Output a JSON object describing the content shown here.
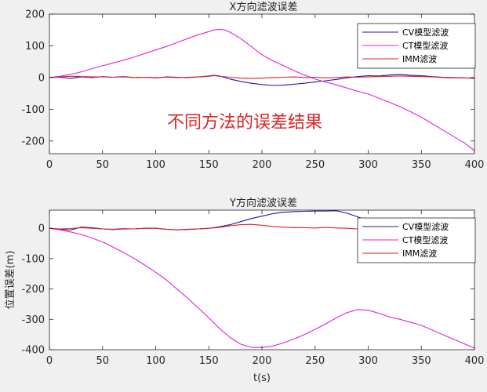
{
  "overlay_text": "不同方法的误差结果",
  "colors": {
    "figure_bg": "#f0f0f0",
    "axes_bg": "#ffffff",
    "axes_border": "#262626",
    "overlay": "#e02424"
  },
  "chart_data": [
    {
      "type": "line",
      "title": "X方向滤波误差",
      "xlabel": "",
      "ylabel": "",
      "xlim": [
        0,
        400
      ],
      "ylim": [
        -240,
        200
      ],
      "xticks": [
        0,
        50,
        100,
        150,
        200,
        250,
        300,
        350,
        400
      ],
      "yticks": [
        -200,
        -100,
        0,
        100,
        200
      ],
      "legend_position": "top-right",
      "series": [
        {
          "name": "CV模型滤波",
          "color": "#1a1a9e",
          "x": [
            0,
            10,
            20,
            30,
            40,
            50,
            60,
            70,
            80,
            90,
            100,
            110,
            120,
            130,
            140,
            150,
            155,
            160,
            170,
            180,
            190,
            200,
            210,
            220,
            230,
            240,
            250,
            260,
            270,
            280,
            290,
            300,
            310,
            320,
            330,
            340,
            350,
            360,
            370,
            380,
            390,
            400
          ],
          "y": [
            0,
            1,
            -3,
            2,
            0,
            3,
            1,
            3,
            0,
            1,
            -1,
            2,
            1,
            0,
            2,
            5,
            7,
            5,
            -5,
            -12,
            -18,
            -22,
            -25,
            -24,
            -21,
            -18,
            -14,
            -10,
            -6,
            -1,
            3,
            6,
            5,
            8,
            10,
            7,
            6,
            3,
            1,
            0,
            -1,
            -2
          ]
        },
        {
          "name": "CT模型滤波",
          "color": "#e020e0",
          "x": [
            0,
            10,
            20,
            30,
            40,
            50,
            60,
            70,
            80,
            90,
            100,
            110,
            120,
            130,
            140,
            150,
            155,
            160,
            165,
            170,
            180,
            190,
            200,
            210,
            220,
            230,
            240,
            250,
            260,
            270,
            280,
            290,
            300,
            310,
            320,
            330,
            340,
            350,
            360,
            370,
            380,
            390,
            400
          ],
          "y": [
            0,
            4,
            10,
            18,
            28,
            37,
            46,
            55,
            65,
            76,
            87,
            98,
            110,
            123,
            135,
            145,
            150,
            152,
            150,
            143,
            123,
            98,
            72,
            53,
            38,
            22,
            8,
            -5,
            -14,
            -23,
            -33,
            -43,
            -52,
            -65,
            -78,
            -92,
            -108,
            -125,
            -145,
            -165,
            -185,
            -205,
            -230
          ]
        },
        {
          "name": "IMM滤波",
          "color": "#dd2222",
          "x": [
            0,
            10,
            20,
            30,
            40,
            50,
            60,
            70,
            80,
            90,
            100,
            110,
            120,
            130,
            140,
            150,
            155,
            160,
            170,
            180,
            190,
            200,
            210,
            220,
            230,
            240,
            250,
            260,
            270,
            280,
            290,
            300,
            310,
            320,
            330,
            340,
            350,
            360,
            370,
            380,
            390,
            400
          ],
          "y": [
            0,
            2,
            4,
            3,
            2,
            2,
            1,
            2,
            0,
            1,
            0,
            1,
            0,
            1,
            2,
            4,
            6,
            4,
            1,
            -2,
            -3,
            -2,
            0,
            1,
            2,
            0,
            1,
            -1,
            0,
            2,
            1,
            2,
            3,
            4,
            5,
            4,
            3,
            2,
            0,
            -1,
            -1,
            -3
          ]
        }
      ]
    },
    {
      "type": "line",
      "title": "Y方向滤波误差",
      "xlabel": "t(s)",
      "ylabel": "位置误差(m)",
      "xlim": [
        0,
        400
      ],
      "ylim": [
        -400,
        60
      ],
      "xticks": [
        0,
        50,
        100,
        150,
        200,
        250,
        300,
        350,
        400
      ],
      "yticks": [
        -400,
        -300,
        -200,
        -100,
        0
      ],
      "legend_position": "top-right",
      "series": [
        {
          "name": "CV模型滤波",
          "color": "#1a1a9e",
          "x": [
            0,
            10,
            20,
            30,
            40,
            50,
            60,
            70,
            80,
            90,
            100,
            110,
            120,
            130,
            140,
            150,
            160,
            170,
            180,
            190,
            200,
            210,
            220,
            230,
            240,
            250,
            260,
            270,
            280,
            290,
            300,
            310,
            320,
            330,
            340,
            350,
            360,
            370,
            380,
            390,
            400
          ],
          "y": [
            0,
            -3,
            -6,
            4,
            2,
            -2,
            -4,
            -2,
            -2,
            0,
            0,
            -3,
            -5,
            -3,
            -2,
            0,
            5,
            12,
            22,
            32,
            40,
            48,
            53,
            55,
            56,
            57,
            57,
            58,
            50,
            38,
            25,
            15,
            10,
            8,
            5,
            3,
            0,
            -2,
            -4,
            -6,
            -8
          ]
        },
        {
          "name": "CT模型滤波",
          "color": "#e020e0",
          "x": [
            0,
            10,
            20,
            30,
            40,
            50,
            60,
            70,
            80,
            90,
            100,
            110,
            120,
            130,
            140,
            150,
            160,
            170,
            180,
            190,
            200,
            210,
            220,
            230,
            240,
            250,
            260,
            270,
            280,
            290,
            300,
            310,
            320,
            330,
            340,
            350,
            360,
            370,
            380,
            390,
            400
          ],
          "y": [
            0,
            -5,
            -12,
            -20,
            -32,
            -45,
            -62,
            -80,
            -100,
            -122,
            -145,
            -170,
            -200,
            -230,
            -262,
            -295,
            -330,
            -360,
            -382,
            -392,
            -393,
            -388,
            -378,
            -365,
            -350,
            -333,
            -315,
            -295,
            -278,
            -268,
            -270,
            -280,
            -292,
            -300,
            -310,
            -320,
            -335,
            -350,
            -365,
            -380,
            -395
          ]
        },
        {
          "name": "IMM滤波",
          "color": "#dd2222",
          "x": [
            0,
            10,
            20,
            30,
            40,
            50,
            60,
            70,
            80,
            90,
            100,
            110,
            120,
            130,
            140,
            150,
            160,
            170,
            180,
            190,
            200,
            210,
            220,
            230,
            240,
            250,
            260,
            270,
            280,
            290,
            300,
            310,
            320,
            330,
            340,
            350,
            360,
            370,
            380,
            390,
            400
          ],
          "y": [
            0,
            -2,
            -1,
            2,
            0,
            -2,
            -3,
            -1,
            -2,
            0,
            0,
            -3,
            -5,
            -4,
            -2,
            0,
            3,
            8,
            12,
            13,
            10,
            6,
            4,
            2,
            2,
            1,
            3,
            1,
            0,
            -2,
            -3,
            -4,
            -5,
            -5,
            -6,
            -7,
            -8,
            -8,
            -9,
            -10,
            -10
          ]
        }
      ]
    }
  ]
}
